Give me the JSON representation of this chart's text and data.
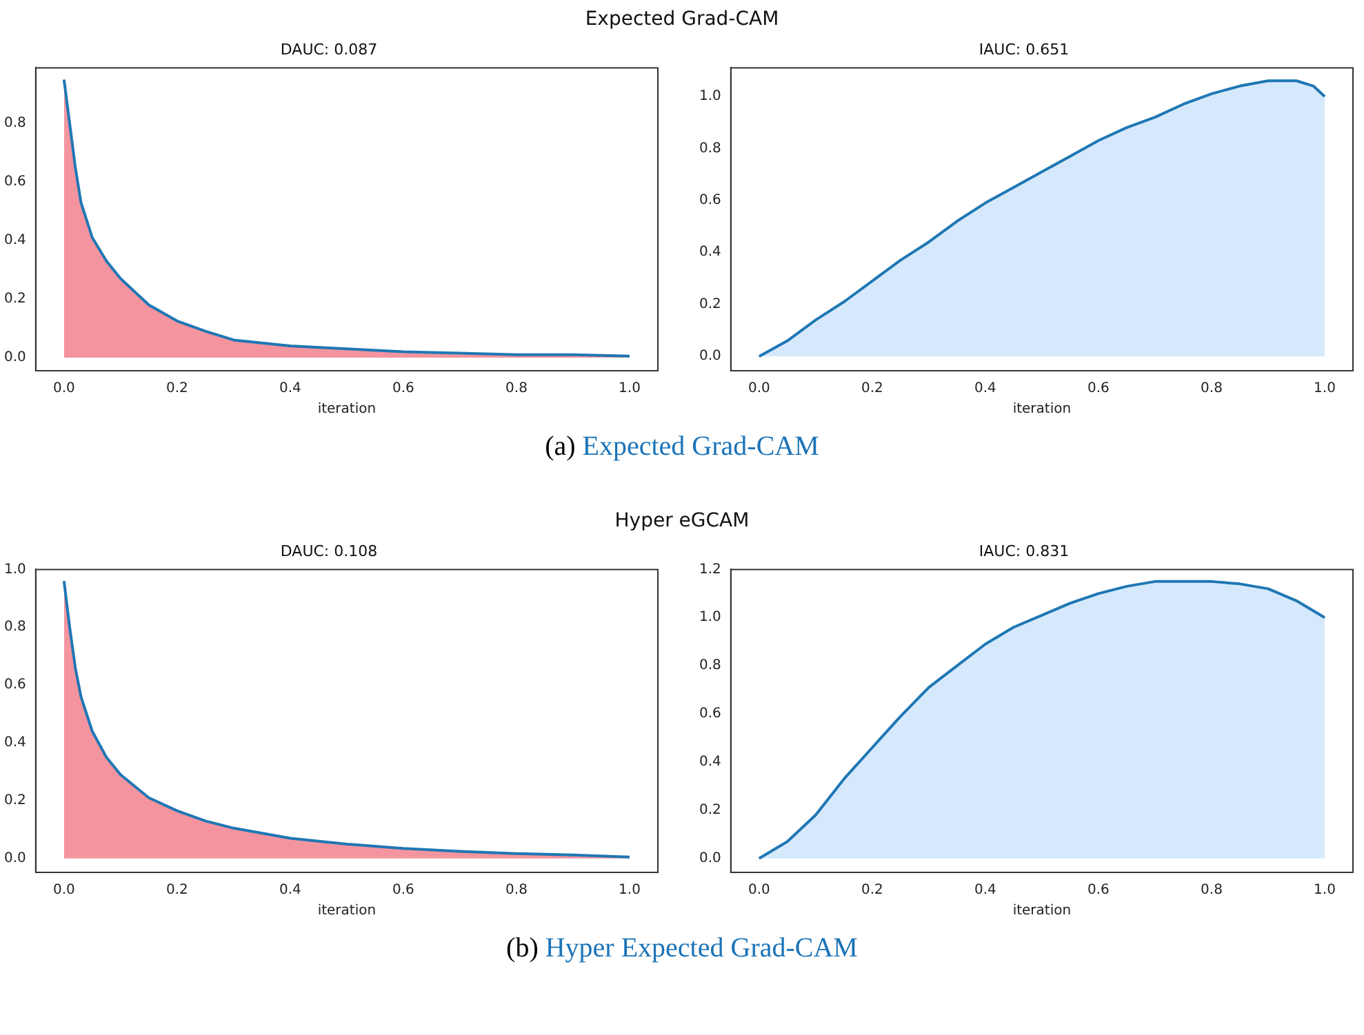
{
  "chart_data": [
    {
      "type": "area",
      "title": "DAUC: 0.087",
      "xlabel": "iteration",
      "annotations": [
        "Expected Grad-CAM",
        "(a) Expected Grad-CAM"
      ],
      "xlim": [
        -0.05,
        1.05
      ],
      "ylim": [
        -0.045,
        0.99
      ],
      "xticks": [
        {
          "value": 0,
          "label": "0.0"
        },
        {
          "value": 0.2,
          "label": "0.2"
        },
        {
          "value": 0.4,
          "label": "0.4"
        },
        {
          "value": 0.6,
          "label": "0.6"
        },
        {
          "value": 0.8,
          "label": "0.8"
        },
        {
          "value": 1,
          "label": "1.0"
        }
      ],
      "yticks": [
        {
          "value": 0,
          "label": "0.0"
        },
        {
          "value": 0.2,
          "label": "0.2"
        },
        {
          "value": 0.4,
          "label": "0.4"
        },
        {
          "value": 0.6,
          "label": "0.6"
        },
        {
          "value": 0.8,
          "label": "0.8"
        }
      ],
      "grid": false,
      "legend": false,
      "series": [
        {
          "color": "#f4949f",
          "x": [
            0,
            0.01,
            0.02,
            0.03,
            0.05,
            0.075,
            0.1,
            0.15,
            0.2,
            0.25,
            0.3,
            0.4,
            0.5,
            0.6,
            0.7,
            0.8,
            0.9,
            1.0
          ],
          "values": [
            0.95,
            0.8,
            0.65,
            0.53,
            0.41,
            0.33,
            0.27,
            0.18,
            0.125,
            0.09,
            0.06,
            0.04,
            0.03,
            0.02,
            0.015,
            0.01,
            0.01,
            0.005
          ]
        },
        {
          "type": "line",
          "color": "#1f77b4",
          "x": [
            0,
            0.01,
            0.02,
            0.03,
            0.05,
            0.075,
            0.1,
            0.15,
            0.2,
            0.25,
            0.3,
            0.4,
            0.5,
            0.6,
            0.7,
            0.8,
            0.9,
            1.0
          ],
          "values": [
            0.95,
            0.8,
            0.65,
            0.53,
            0.41,
            0.33,
            0.27,
            0.18,
            0.125,
            0.09,
            0.06,
            0.04,
            0.03,
            0.02,
            0.015,
            0.01,
            0.01,
            0.005
          ]
        }
      ]
    },
    {
      "type": "area",
      "title": "IAUC: 0.651",
      "xlabel": "iteration",
      "xlim": [
        -0.05,
        1.05
      ],
      "ylim": [
        -0.055,
        1.11
      ],
      "xticks": [
        {
          "value": 0,
          "label": "0.0"
        },
        {
          "value": 0.2,
          "label": "0.2"
        },
        {
          "value": 0.4,
          "label": "0.4"
        },
        {
          "value": 0.6,
          "label": "0.6"
        },
        {
          "value": 0.8,
          "label": "0.8"
        },
        {
          "value": 1,
          "label": "1.0"
        }
      ],
      "yticks": [
        {
          "value": 0,
          "label": "0.0"
        },
        {
          "value": 0.2,
          "label": "0.2"
        },
        {
          "value": 0.4,
          "label": "0.4"
        },
        {
          "value": 0.6,
          "label": "0.6"
        },
        {
          "value": 0.8,
          "label": "0.8"
        },
        {
          "value": 1,
          "label": "1.0"
        }
      ],
      "grid": false,
      "legend": false,
      "series": [
        {
          "color": "#d6e9fc",
          "x": [
            0,
            0.05,
            0.1,
            0.15,
            0.2,
            0.25,
            0.3,
            0.35,
            0.4,
            0.45,
            0.5,
            0.55,
            0.6,
            0.65,
            0.7,
            0.75,
            0.8,
            0.85,
            0.9,
            0.95,
            0.98,
            1.0
          ],
          "values": [
            0,
            0.06,
            0.14,
            0.21,
            0.29,
            0.37,
            0.44,
            0.52,
            0.59,
            0.65,
            0.71,
            0.77,
            0.83,
            0.88,
            0.92,
            0.97,
            1.01,
            1.04,
            1.06,
            1.06,
            1.04,
            1.0
          ]
        }
      ]
    },
    {
      "type": "area",
      "title": "DAUC: 0.108",
      "xlabel": "iteration",
      "annotations": [
        "Hyper eGCAM",
        "(b) Hyper Expected Grad-CAM"
      ],
      "xlim": [
        -0.05,
        1.05
      ],
      "ylim": [
        -0.048,
        1.0
      ],
      "xticks": [
        {
          "value": 0,
          "label": "0.0"
        },
        {
          "value": 0.2,
          "label": "0.2"
        },
        {
          "value": 0.4,
          "label": "0.4"
        },
        {
          "value": 0.6,
          "label": "0.6"
        },
        {
          "value": 0.8,
          "label": "0.8"
        },
        {
          "value": 1,
          "label": "1.0"
        }
      ],
      "yticks": [
        {
          "value": 0,
          "label": "0.0"
        },
        {
          "value": 0.2,
          "label": "0.2"
        },
        {
          "value": 0.4,
          "label": "0.4"
        },
        {
          "value": 0.6,
          "label": "0.6"
        },
        {
          "value": 0.8,
          "label": "0.8"
        },
        {
          "value": 1,
          "label": "1.0"
        }
      ],
      "grid": false,
      "legend": false,
      "series": [
        {
          "color": "#f4949f",
          "x": [
            0,
            0.01,
            0.02,
            0.03,
            0.05,
            0.075,
            0.1,
            0.15,
            0.2,
            0.25,
            0.3,
            0.4,
            0.5,
            0.6,
            0.7,
            0.8,
            0.9,
            1.0
          ],
          "values": [
            0.96,
            0.8,
            0.66,
            0.56,
            0.44,
            0.35,
            0.29,
            0.21,
            0.165,
            0.13,
            0.105,
            0.07,
            0.05,
            0.035,
            0.025,
            0.017,
            0.012,
            0.005
          ]
        },
        {
          "type": "line",
          "color": "#1f77b4",
          "x": [
            0,
            0.01,
            0.02,
            0.03,
            0.05,
            0.075,
            0.1,
            0.15,
            0.2,
            0.25,
            0.3,
            0.4,
            0.5,
            0.6,
            0.7,
            0.8,
            0.9,
            1.0
          ],
          "values": [
            0.96,
            0.8,
            0.66,
            0.56,
            0.44,
            0.35,
            0.29,
            0.21,
            0.165,
            0.13,
            0.105,
            0.07,
            0.05,
            0.035,
            0.025,
            0.017,
            0.012,
            0.005
          ]
        }
      ]
    },
    {
      "type": "area",
      "title": "IAUC: 0.831",
      "xlabel": "iteration",
      "xlim": [
        -0.05,
        1.05
      ],
      "ylim": [
        -0.058,
        1.2
      ],
      "xticks": [
        {
          "value": 0,
          "label": "0.0"
        },
        {
          "value": 0.2,
          "label": "0.2"
        },
        {
          "value": 0.4,
          "label": "0.4"
        },
        {
          "value": 0.6,
          "label": "0.6"
        },
        {
          "value": 0.8,
          "label": "0.8"
        },
        {
          "value": 1,
          "label": "1.0"
        }
      ],
      "yticks": [
        {
          "value": 0,
          "label": "0.0"
        },
        {
          "value": 0.2,
          "label": "0.2"
        },
        {
          "value": 0.4,
          "label": "0.4"
        },
        {
          "value": 0.6,
          "label": "0.6"
        },
        {
          "value": 0.8,
          "label": "0.8"
        },
        {
          "value": 1,
          "label": "1.0"
        },
        {
          "value": 1.2,
          "label": "1.2"
        }
      ],
      "grid": false,
      "legend": false,
      "series": [
        {
          "color": "#d6e9fc",
          "x": [
            0,
            0.05,
            0.1,
            0.15,
            0.2,
            0.25,
            0.3,
            0.35,
            0.4,
            0.45,
            0.5,
            0.55,
            0.6,
            0.65,
            0.7,
            0.75,
            0.8,
            0.85,
            0.9,
            0.95,
            1.0
          ],
          "values": [
            0,
            0.07,
            0.18,
            0.33,
            0.46,
            0.59,
            0.71,
            0.8,
            0.89,
            0.96,
            1.01,
            1.06,
            1.1,
            1.13,
            1.15,
            1.15,
            1.15,
            1.14,
            1.12,
            1.07,
            1.0
          ]
        }
      ]
    }
  ]
}
